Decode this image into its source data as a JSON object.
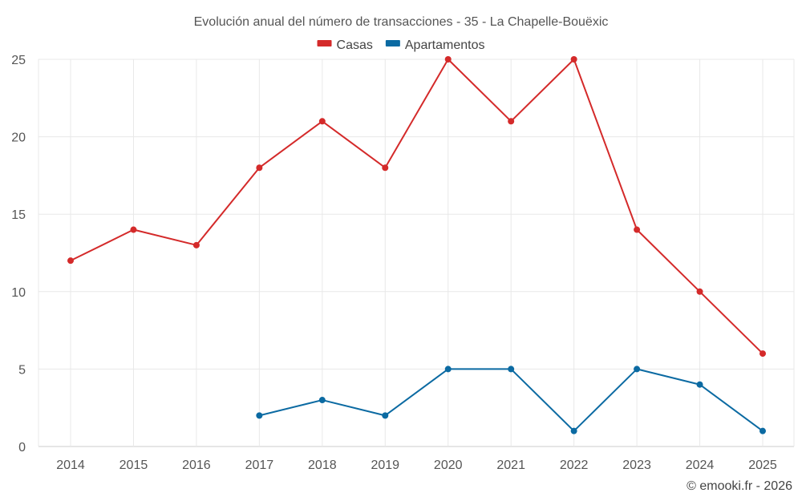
{
  "chart_data": {
    "type": "line",
    "title": "Evolución anual del número de transacciones - 35 - La Chapelle-Bouëxic",
    "categories": [
      "2014",
      "2015",
      "2016",
      "2017",
      "2018",
      "2019",
      "2020",
      "2021",
      "2022",
      "2023",
      "2024",
      "2025"
    ],
    "series": [
      {
        "name": "Casas",
        "color": "#d42a2a",
        "values": [
          12,
          14,
          13,
          18,
          21,
          18,
          25,
          21,
          25,
          14,
          10,
          6
        ]
      },
      {
        "name": "Apartamentos",
        "color": "#0b6aa2",
        "values": [
          null,
          null,
          null,
          2,
          3,
          2,
          5,
          5,
          1,
          5,
          4,
          1
        ]
      }
    ],
    "ylim": [
      0,
      25
    ],
    "yticks": [
      "0",
      "5",
      "10",
      "15",
      "20",
      "25"
    ],
    "grid": true,
    "legend_position": "top-center",
    "xlabel": "",
    "ylabel": ""
  },
  "credit": "© emooki.fr - 2026"
}
